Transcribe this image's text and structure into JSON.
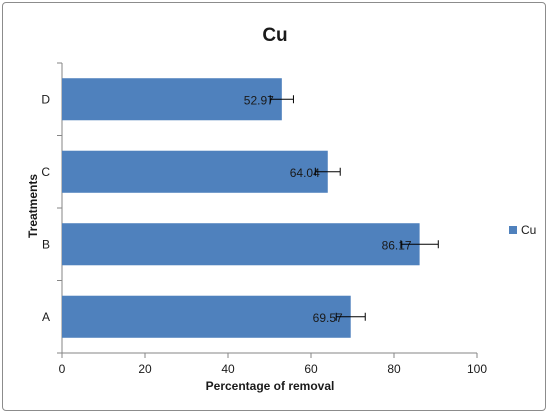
{
  "chart_data": {
    "type": "bar",
    "orientation": "horizontal",
    "title": "Cu",
    "xlabel": "Percentage of removal",
    "ylabel": "Treatments",
    "categories": [
      "A",
      "B",
      "C",
      "D"
    ],
    "series": [
      {
        "name": "Cu",
        "values": [
          69.57,
          86.17,
          64.04,
          52.97
        ],
        "labels": [
          "69.57",
          "86.17",
          "64.04",
          "52.97"
        ],
        "error": [
          3.5,
          4.5,
          3.0,
          2.8
        ],
        "color": "#4f81bd"
      }
    ],
    "xlim": [
      0,
      100
    ],
    "xticks": [
      0,
      20,
      40,
      60,
      80,
      100
    ],
    "grid": false,
    "legend": "right",
    "error_bars": true
  }
}
